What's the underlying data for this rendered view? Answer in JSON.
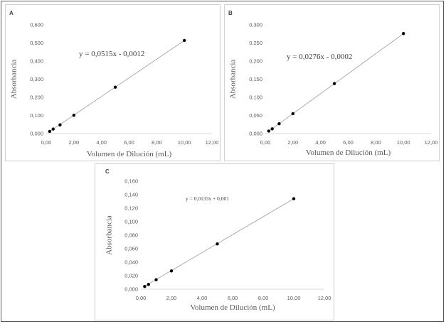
{
  "chart_data": [
    {
      "type": "scatter",
      "panel_label": "A",
      "title": "",
      "xlabel": "Volumen de Dilución (mL)",
      "ylabel": "Absorbancia",
      "xlim": [
        0,
        12
      ],
      "ylim": [
        0,
        0.6
      ],
      "x_ticks": [
        "0,00",
        "2,00",
        "4,00",
        "6,00",
        "8,00",
        "10,00",
        "12,00"
      ],
      "y_ticks": [
        "0,000",
        "0,100",
        "0,200",
        "0,300",
        "0,400",
        "0,500",
        "0,600"
      ],
      "x_tick_values": [
        0,
        2,
        4,
        6,
        8,
        10,
        12
      ],
      "y_tick_values": [
        0,
        0.1,
        0.2,
        0.3,
        0.4,
        0.5,
        0.6
      ],
      "series": [
        {
          "x": [
            0.25,
            0.5,
            1,
            2,
            5,
            10
          ],
          "y": [
            0.012,
            0.025,
            0.048,
            0.101,
            0.256,
            0.514
          ]
        }
      ],
      "trendline": {
        "slope": 0.0515,
        "intercept": -0.0012,
        "x_range": [
          0.25,
          10
        ]
      },
      "equation": "y = 0,0515x - 0,0012",
      "grid": false,
      "point_color": "#000000",
      "line_color": "#a6a6a6"
    },
    {
      "type": "scatter",
      "panel_label": "B",
      "title": "",
      "xlabel": "Volumen de Dilución (mL)",
      "ylabel": "Absorbancia",
      "xlim": [
        0,
        12
      ],
      "ylim": [
        0,
        0.3
      ],
      "x_ticks": [
        "0,00",
        "2,00",
        "4,00",
        "6,00",
        "8,00",
        "10,00",
        "12,00"
      ],
      "y_ticks": [
        "0,000",
        "0,050",
        "0,100",
        "0,150",
        "0,200",
        "0,250",
        "0,300"
      ],
      "x_tick_values": [
        0,
        2,
        4,
        6,
        8,
        10,
        12
      ],
      "y_tick_values": [
        0,
        0.05,
        0.1,
        0.15,
        0.2,
        0.25,
        0.3
      ],
      "series": [
        {
          "x": [
            0.25,
            0.5,
            1,
            2,
            5,
            10
          ],
          "y": [
            0.007,
            0.013,
            0.027,
            0.055,
            0.138,
            0.276
          ]
        }
      ],
      "trendline": {
        "slope": 0.0276,
        "intercept": -0.0002,
        "x_range": [
          0.25,
          10
        ]
      },
      "equation": "y = 0,0276x - 0,0002",
      "grid": false,
      "point_color": "#000000",
      "line_color": "#a6a6a6"
    },
    {
      "type": "scatter",
      "panel_label": "C",
      "title": "",
      "xlabel": "Volumen de Dilución (mL)",
      "ylabel": "Absorbancia",
      "xlim": [
        0,
        12
      ],
      "ylim": [
        0,
        0.16
      ],
      "x_ticks": [
        "0,00",
        "2,00",
        "4,00",
        "6,00",
        "8,00",
        "10,00",
        "12,00"
      ],
      "y_ticks": [
        "0,000",
        "0,020",
        "0,040",
        "0,060",
        "0,080",
        "0,100",
        "0,120",
        "0,140",
        "0,160"
      ],
      "x_tick_values": [
        0,
        2,
        4,
        6,
        8,
        10,
        12
      ],
      "y_tick_values": [
        0,
        0.02,
        0.04,
        0.06,
        0.08,
        0.1,
        0.12,
        0.14,
        0.16
      ],
      "series": [
        {
          "x": [
            0.25,
            0.5,
            1,
            2,
            5,
            10
          ],
          "y": [
            0.004,
            0.007,
            0.014,
            0.027,
            0.067,
            0.134
          ]
        }
      ],
      "trendline": {
        "slope": 0.0133,
        "intercept": 0.001,
        "x_range": [
          0.25,
          10
        ]
      },
      "equation": "y = 0,0133x + 0,001",
      "grid": false,
      "point_color": "#000000",
      "line_color": "#a6a6a6"
    }
  ]
}
